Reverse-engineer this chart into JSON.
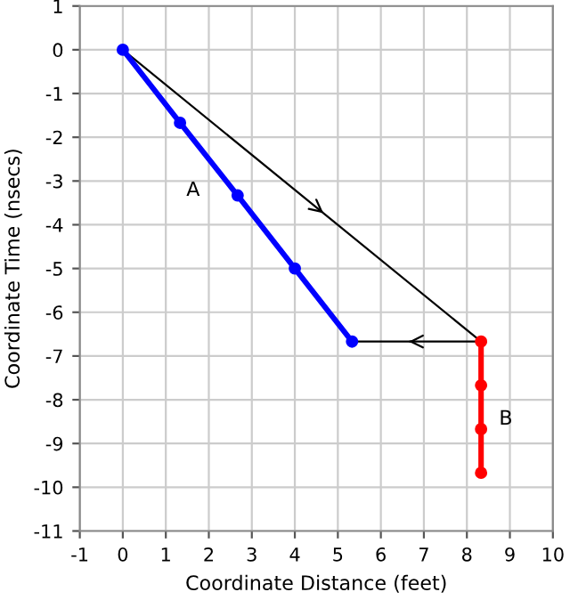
{
  "chart_data": {
    "type": "line",
    "xlabel": "Coordinate Distance (feet)",
    "ylabel": "Coordinate Time (nsecs)",
    "xlim": [
      -1,
      10
    ],
    "ylim": [
      -11,
      1
    ],
    "xticks": [
      -1,
      0,
      1,
      2,
      3,
      4,
      5,
      6,
      7,
      8,
      9,
      10
    ],
    "yticks": [
      1,
      0,
      -1,
      -2,
      -3,
      -4,
      -5,
      -6,
      -7,
      -8,
      -9,
      -10,
      -11
    ],
    "grid": true,
    "series": [
      {
        "color": "#0000ff",
        "marker": "circle",
        "line_style": "solid",
        "x": [
          0,
          1.33,
          2.67,
          4,
          5.33
        ],
        "values": [
          0,
          -1.67,
          -3.33,
          -5,
          -6.67
        ]
      },
      {
        "color": "#ff0000",
        "marker": "circle",
        "line_style": "solid",
        "x": [
          8.33,
          8.33,
          8.33,
          8.33
        ],
        "values": [
          -6.67,
          -7.67,
          -8.67,
          -9.67
        ]
      },
      {
        "color": "#000000",
        "marker": "none",
        "line_style": "solid",
        "x": [
          0,
          8.33
        ],
        "values": [
          0,
          -6.67
        ]
      },
      {
        "color": "#000000",
        "marker": "none",
        "line_style": "solid",
        "x": [
          8.33,
          5.33
        ],
        "values": [
          -6.67,
          -6.67
        ]
      }
    ],
    "annotations": [
      "A",
      "B"
    ]
  }
}
